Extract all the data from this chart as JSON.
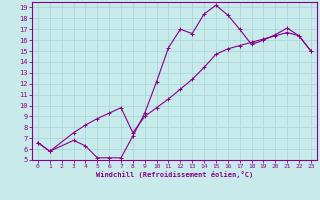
{
  "xlabel": "Windchill (Refroidissement éolien,°C)",
  "bg_color": "#c9eaea",
  "line_color": "#880088",
  "grid_color": "#a8d8d8",
  "xlim": [
    -0.5,
    23.5
  ],
  "ylim": [
    5,
    19.5
  ],
  "xticks": [
    0,
    1,
    2,
    3,
    4,
    5,
    6,
    7,
    8,
    9,
    10,
    11,
    12,
    13,
    14,
    15,
    16,
    17,
    18,
    19,
    20,
    21,
    22,
    23
  ],
  "yticks": [
    5,
    6,
    7,
    8,
    9,
    10,
    11,
    12,
    13,
    14,
    15,
    16,
    17,
    18,
    19
  ],
  "line1_x": [
    0,
    1,
    3,
    4,
    5,
    6,
    7,
    8,
    9,
    10,
    11,
    12,
    13,
    14,
    15,
    16,
    17,
    18,
    19,
    20,
    21,
    22,
    23
  ],
  "line1_y": [
    6.6,
    5.8,
    6.8,
    6.3,
    5.2,
    5.2,
    5.2,
    7.2,
    9.3,
    12.2,
    15.3,
    17.0,
    16.6,
    18.4,
    19.2,
    18.3,
    17.0,
    15.6,
    16.0,
    16.5,
    17.1,
    16.4,
    15.0
  ],
  "line2_x": [
    0,
    1,
    3,
    4,
    5,
    6,
    7,
    8,
    9,
    10,
    11,
    12,
    13,
    14,
    15,
    16,
    17,
    18,
    19,
    20,
    21,
    22,
    23
  ],
  "line2_y": [
    6.6,
    5.8,
    7.5,
    8.2,
    8.8,
    9.3,
    9.8,
    7.5,
    9.0,
    9.8,
    10.6,
    11.5,
    12.4,
    13.5,
    14.7,
    15.2,
    15.5,
    15.8,
    16.1,
    16.4,
    16.7,
    16.4,
    15.0
  ]
}
